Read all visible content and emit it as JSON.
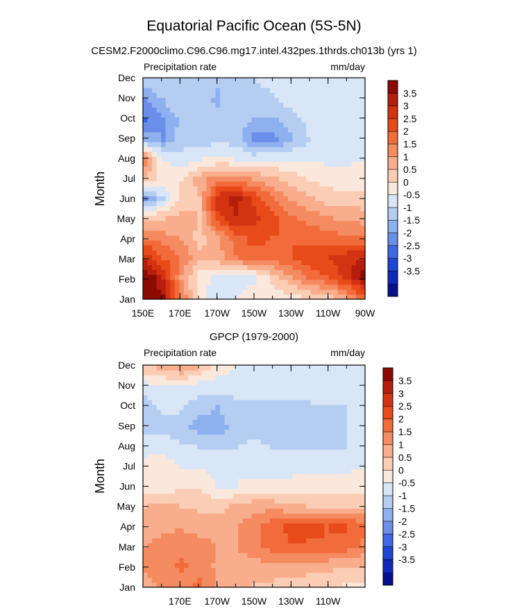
{
  "title": "Equatorial Pacific Ocean (5S-5N)",
  "subtitle": "CESM2.F2000climo.C96.C96.mg17.intel.432pes.1thrds.ch013b (yrs 1)",
  "colorbar_levels": [
    "3.5",
    "3",
    "2.5",
    "2",
    "1.5",
    "1",
    "0.5",
    "0",
    "-0.5",
    "-1",
    "-1.5",
    "-2",
    "-2.5",
    "-3",
    "-3.5"
  ],
  "colorbar_colors": [
    "#8c0a04",
    "#b51e0c",
    "#d43312",
    "#e84a1a",
    "#f26b3a",
    "#f58b60",
    "#f8ad8c",
    "#fbcdb4",
    "#fbe8dc",
    "#d9e6f7",
    "#b6cdf2",
    "#8fb0ee",
    "#6b8eeb",
    "#3f68e6",
    "#1f45d6",
    "#0f2aba",
    "#060f8c"
  ],
  "chart_data": [
    {
      "type": "heatmap",
      "name": "model",
      "panel_title": "",
      "left_label": "Precipitation rate",
      "right_label": "mm/day",
      "ylabel": "Month",
      "y_categories": [
        "Jan",
        "Feb",
        "Mar",
        "Apr",
        "May",
        "Jun",
        "Jul",
        "Aug",
        "Sep",
        "Oct",
        "Nov",
        "Dec"
      ],
      "x_tick_labels": [
        "150E",
        "170E",
        "170W",
        "150W",
        "130W",
        "110W",
        "90W"
      ],
      "x_range": [
        "150E",
        "90W"
      ],
      "units": "mm/day",
      "values_by_month": [
        [
          4.2,
          3.5,
          1.5,
          -0.3,
          -0.8,
          -0.5,
          -0.2,
          -0.3,
          -0.2,
          0.1,
          0.3,
          0.8,
          1.8
        ],
        [
          4.0,
          3.0,
          1.0,
          -0.3,
          -0.6,
          -0.8,
          -0.6,
          0.2,
          0.9,
          1.6,
          2.0,
          2.6,
          3.7
        ],
        [
          2.8,
          2.0,
          1.5,
          0.6,
          0.8,
          1.5,
          1.8,
          1.8,
          2.0,
          2.3,
          2.5,
          2.8,
          3.0
        ],
        [
          1.5,
          1.2,
          1.0,
          0.3,
          0.8,
          1.8,
          2.2,
          2.0,
          2.0,
          1.9,
          1.8,
          1.6,
          1.6
        ],
        [
          0.5,
          0.5,
          0.7,
          0.5,
          2.3,
          3.0,
          2.7,
          2.2,
          1.6,
          1.3,
          1.1,
          0.9,
          0.8
        ],
        [
          -2.0,
          -1.0,
          0.3,
          0.5,
          2.8,
          3.2,
          2.4,
          1.6,
          1.0,
          0.6,
          0.3,
          0.2,
          0.2
        ],
        [
          0.5,
          -0.2,
          0.0,
          0.7,
          1.4,
          1.4,
          1.0,
          0.6,
          0.3,
          0.0,
          -0.2,
          -0.3,
          -0.3
        ],
        [
          1.2,
          -0.5,
          -0.8,
          -0.5,
          -0.4,
          -0.5,
          -0.6,
          -0.5,
          -0.5,
          -0.6,
          -0.6,
          -0.6,
          -0.5
        ],
        [
          -1.5,
          -2.0,
          -1.2,
          -1.3,
          -1.1,
          -1.2,
          -2.2,
          -2.2,
          -1.6,
          -1.0,
          -0.8,
          -0.6,
          -0.6
        ],
        [
          -2.5,
          -2.0,
          -1.4,
          -1.2,
          -1.3,
          -1.2,
          -1.5,
          -1.6,
          -1.2,
          -0.9,
          -0.8,
          -0.6,
          -0.6
        ],
        [
          -2.0,
          -1.5,
          -1.0,
          -1.2,
          -1.6,
          -1.1,
          -1.3,
          -1.1,
          -0.8,
          -0.7,
          -0.6,
          -0.6,
          -0.6
        ],
        [
          -1.2,
          -1.0,
          -1.0,
          -1.0,
          -1.4,
          -1.0,
          -1.0,
          -0.8,
          -0.7,
          -0.6,
          -0.6,
          -0.6,
          -0.6
        ]
      ]
    },
    {
      "type": "heatmap",
      "name": "gpcp",
      "panel_title": "GPCP (1979-2000)",
      "left_label": "Precipitation rate",
      "right_label": "mm/day",
      "ylabel": "Month",
      "y_categories": [
        "Jan",
        "Feb",
        "Mar",
        "Apr",
        "May",
        "Jun",
        "Jul",
        "Aug",
        "Sep",
        "Oct",
        "Nov",
        "Dec"
      ],
      "x_tick_labels": [
        "170E",
        "170W",
        "150W",
        "130W",
        "110W"
      ],
      "x_range": [
        "150E",
        "90W"
      ],
      "units": "mm/day",
      "values_by_month": [
        [
          0.8,
          1.2,
          1.3,
          1.6,
          0.9,
          0.6,
          0.5,
          0.4,
          0.3,
          0.2,
          0.1,
          0.0,
          0.0
        ],
        [
          1.1,
          1.3,
          1.6,
          1.3,
          0.9,
          0.7,
          0.8,
          0.9,
          0.8,
          0.8,
          0.7,
          0.6,
          0.6
        ],
        [
          1.0,
          1.2,
          1.4,
          1.3,
          1.0,
          1.0,
          1.4,
          1.8,
          2.0,
          1.9,
          2.0,
          1.9,
          1.4
        ],
        [
          0.6,
          0.9,
          0.9,
          0.7,
          0.8,
          1.0,
          1.3,
          1.8,
          2.1,
          2.3,
          2.0,
          2.1,
          1.7
        ],
        [
          0.5,
          0.6,
          0.5,
          0.4,
          0.3,
          0.6,
          0.8,
          0.8,
          0.6,
          0.5,
          0.5,
          0.4,
          0.4
        ],
        [
          -0.3,
          -0.4,
          0.0,
          0.0,
          -0.6,
          -0.5,
          -0.3,
          -0.3,
          -0.3,
          -0.3,
          -0.3,
          -0.3,
          -0.3
        ],
        [
          -0.4,
          -0.3,
          -0.5,
          -0.6,
          -0.6,
          -0.6,
          -0.7,
          -0.7,
          -0.7,
          -0.6,
          -0.6,
          -0.6,
          -0.5
        ],
        [
          -0.6,
          -0.6,
          -0.9,
          -1.0,
          -1.1,
          -1.0,
          -0.9,
          -1.0,
          -1.0,
          -1.1,
          -1.0,
          -1.0,
          -0.9
        ],
        [
          -1.2,
          -1.2,
          -1.3,
          -1.7,
          -1.8,
          -1.2,
          -1.1,
          -1.2,
          -1.2,
          -1.1,
          -1.0,
          -1.0,
          -0.9
        ],
        [
          -1.2,
          -0.9,
          -0.9,
          -1.3,
          -1.5,
          -1.2,
          -1.1,
          -1.2,
          -1.2,
          -1.1,
          -1.0,
          -1.0,
          -0.9
        ],
        [
          -0.8,
          -0.6,
          -0.6,
          -0.8,
          -0.8,
          -0.7,
          -0.7,
          -0.7,
          -0.7,
          -0.7,
          -0.7,
          -0.7,
          -0.6
        ],
        [
          0.3,
          0.6,
          0.9,
          0.4,
          -0.3,
          -0.5,
          -0.5,
          -0.6,
          -0.6,
          -0.6,
          -0.6,
          -0.6,
          -0.6
        ]
      ]
    }
  ]
}
